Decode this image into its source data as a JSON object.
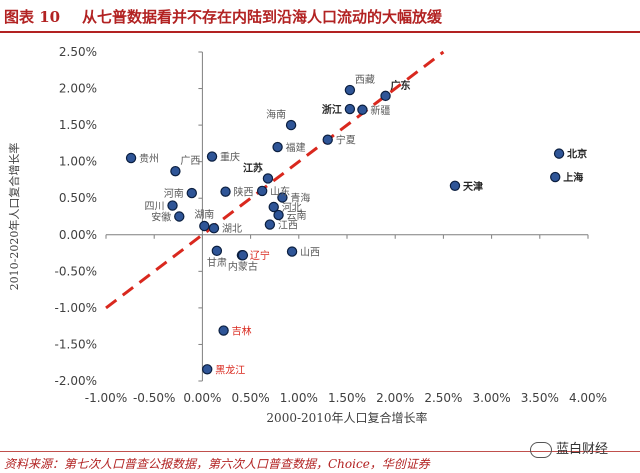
{
  "header": {
    "figure_label": "图表 10",
    "title": "从七普数据看并不存在内陆到沿海人口流动的大幅放缓"
  },
  "footer": {
    "source": "资料来源：第七次人口普查公报数据，第六次人口普查数据，Choice，华创证券",
    "watermark": "蓝白财经"
  },
  "chart_data": {
    "type": "scatter",
    "xlabel": "2000-2010年人口复合增长率",
    "ylabel": "2010-2020年人口复合增长率",
    "xlim": [
      -1.0,
      4.0
    ],
    "ylim": [
      -2.0,
      2.5
    ],
    "x_ticks": [
      -1.0,
      -0.5,
      0.0,
      0.5,
      1.0,
      1.5,
      2.0,
      2.5,
      3.0,
      3.5,
      4.0
    ],
    "y_ticks": [
      -2.0,
      -1.5,
      -1.0,
      -0.5,
      0.0,
      0.5,
      1.0,
      1.5,
      2.0,
      2.5
    ],
    "x_tick_labels": [
      "-1.00%",
      "-0.50%",
      "0.00%",
      "0.50%",
      "1.00%",
      "1.50%",
      "2.00%",
      "2.50%",
      "3.00%",
      "3.50%",
      "4.00%"
    ],
    "y_tick_labels": [
      "-2.00%",
      "-1.50%",
      "-1.00%",
      "-0.50%",
      "0.00%",
      "0.50%",
      "1.00%",
      "1.50%",
      "2.00%",
      "2.50%"
    ],
    "grid": false,
    "colors": {
      "point": "#2f5597",
      "point_edge": "#0b1f40",
      "diagonal": "#d9281e",
      "label": "#595959",
      "highlight": "#d9281e"
    },
    "diagonal": {
      "from": [
        -1.0,
        -1.0
      ],
      "to": [
        2.5,
        2.5
      ]
    },
    "points": [
      {
        "name": "西藏",
        "x": 1.53,
        "y": 1.98,
        "style": "normal",
        "label_pos": "top-right"
      },
      {
        "name": "广东",
        "x": 1.9,
        "y": 1.9,
        "style": "bold",
        "label_pos": "top-right"
      },
      {
        "name": "浙江",
        "x": 1.53,
        "y": 1.72,
        "style": "bold",
        "label_pos": "left"
      },
      {
        "name": "新疆",
        "x": 1.66,
        "y": 1.71,
        "style": "normal",
        "label_pos": "right"
      },
      {
        "name": "海南",
        "x": 0.92,
        "y": 1.5,
        "style": "normal",
        "label_pos": "top-left"
      },
      {
        "name": "宁夏",
        "x": 1.3,
        "y": 1.3,
        "style": "normal",
        "label_pos": "right"
      },
      {
        "name": "福建",
        "x": 0.78,
        "y": 1.2,
        "style": "normal",
        "label_pos": "right"
      },
      {
        "name": "贵州",
        "x": -0.74,
        "y": 1.05,
        "style": "normal",
        "label_pos": "right"
      },
      {
        "name": "重庆",
        "x": 0.1,
        "y": 1.07,
        "style": "normal",
        "label_pos": "right"
      },
      {
        "name": "广西",
        "x": -0.28,
        "y": 0.87,
        "style": "normal",
        "label_pos": "top-right"
      },
      {
        "name": "江苏",
        "x": 0.68,
        "y": 0.77,
        "style": "bold",
        "label_pos": "top-left"
      },
      {
        "name": "河南",
        "x": -0.11,
        "y": 0.57,
        "style": "normal",
        "label_pos": "left"
      },
      {
        "name": "陕西",
        "x": 0.24,
        "y": 0.59,
        "style": "normal",
        "label_pos": "right"
      },
      {
        "name": "山东",
        "x": 0.62,
        "y": 0.6,
        "style": "normal",
        "label_pos": "right"
      },
      {
        "name": "青海",
        "x": 0.83,
        "y": 0.51,
        "style": "normal",
        "label_pos": "right"
      },
      {
        "name": "四川",
        "x": -0.31,
        "y": 0.4,
        "style": "normal",
        "label_pos": "left"
      },
      {
        "name": "河北",
        "x": 0.74,
        "y": 0.38,
        "style": "normal",
        "label_pos": "right"
      },
      {
        "name": "安徽",
        "x": -0.24,
        "y": 0.25,
        "style": "normal",
        "label_pos": "left"
      },
      {
        "name": "云南",
        "x": 0.79,
        "y": 0.27,
        "style": "normal",
        "label_pos": "right"
      },
      {
        "name": "湖南",
        "x": 0.02,
        "y": 0.12,
        "style": "normal",
        "label_pos": "top"
      },
      {
        "name": "湖北",
        "x": 0.12,
        "y": 0.09,
        "style": "normal",
        "label_pos": "right"
      },
      {
        "name": "江西",
        "x": 0.7,
        "y": 0.14,
        "style": "normal",
        "label_pos": "right"
      },
      {
        "name": "天津",
        "x": 2.62,
        "y": 0.67,
        "style": "bold",
        "label_pos": "right"
      },
      {
        "name": "北京",
        "x": 3.7,
        "y": 1.11,
        "style": "bold",
        "label_pos": "right"
      },
      {
        "name": "上海",
        "x": 3.66,
        "y": 0.79,
        "style": "bold",
        "label_pos": "right"
      },
      {
        "name": "甘肃",
        "x": 0.15,
        "y": -0.22,
        "style": "normal",
        "label_pos": "bottom"
      },
      {
        "name": "辽宁",
        "x": 0.41,
        "y": -0.28,
        "style": "highlight",
        "label_pos": "right"
      },
      {
        "name": "内蒙古",
        "x": 0.42,
        "y": -0.28,
        "style": "normal",
        "label_pos": "bottom"
      },
      {
        "name": "山西",
        "x": 0.93,
        "y": -0.23,
        "style": "normal",
        "label_pos": "right"
      },
      {
        "name": "吉林",
        "x": 0.22,
        "y": -1.31,
        "style": "highlight",
        "label_pos": "right"
      },
      {
        "name": "黑龙江",
        "x": 0.05,
        "y": -1.84,
        "style": "highlight",
        "label_pos": "right"
      }
    ]
  }
}
